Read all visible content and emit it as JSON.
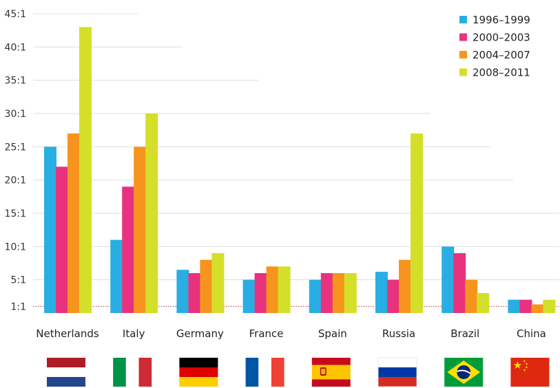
{
  "chart_data": {
    "type": "bar",
    "categories": [
      "Netherlands",
      "Italy",
      "Germany",
      "France",
      "Spain",
      "Russia",
      "Brazil",
      "China"
    ],
    "series": [
      {
        "name": "1996–1999",
        "color": "#29aee3",
        "values": [
          25,
          11,
          6.5,
          5,
          5,
          6.2,
          10,
          2
        ]
      },
      {
        "name": "2000–2003",
        "color": "#e8327e",
        "values": [
          22,
          19,
          6,
          6,
          6,
          5,
          9,
          2
        ]
      },
      {
        "name": "2004–2007",
        "color": "#f7941d",
        "values": [
          27,
          25,
          8,
          7,
          6,
          8,
          5,
          1.3
        ]
      },
      {
        "name": "2008–2011",
        "color": "#d4df2a",
        "values": [
          43,
          30,
          9,
          7,
          6,
          27,
          3,
          2
        ]
      }
    ],
    "yticks": [
      {
        "value": 1,
        "label": "1:1"
      },
      {
        "value": 5,
        "label": "5:1"
      },
      {
        "value": 10,
        "label": "10:1"
      },
      {
        "value": 15,
        "label": "15:1"
      },
      {
        "value": 20,
        "label": "20:1"
      },
      {
        "value": 25,
        "label": "25:1"
      },
      {
        "value": 30,
        "label": "30:1"
      },
      {
        "value": 35,
        "label": "35:1"
      },
      {
        "value": 40,
        "label": "40:1"
      },
      {
        "value": 45,
        "label": "45:1"
      }
    ],
    "ylim": [
      0,
      45
    ],
    "reference_line": 1,
    "grid": true,
    "legend": "top-right",
    "flags": [
      "netherlands-flag",
      "italy-flag",
      "germany-flag",
      "france-flag",
      "spain-flag",
      "russia-flag",
      "brazil-flag",
      "china-flag"
    ]
  }
}
